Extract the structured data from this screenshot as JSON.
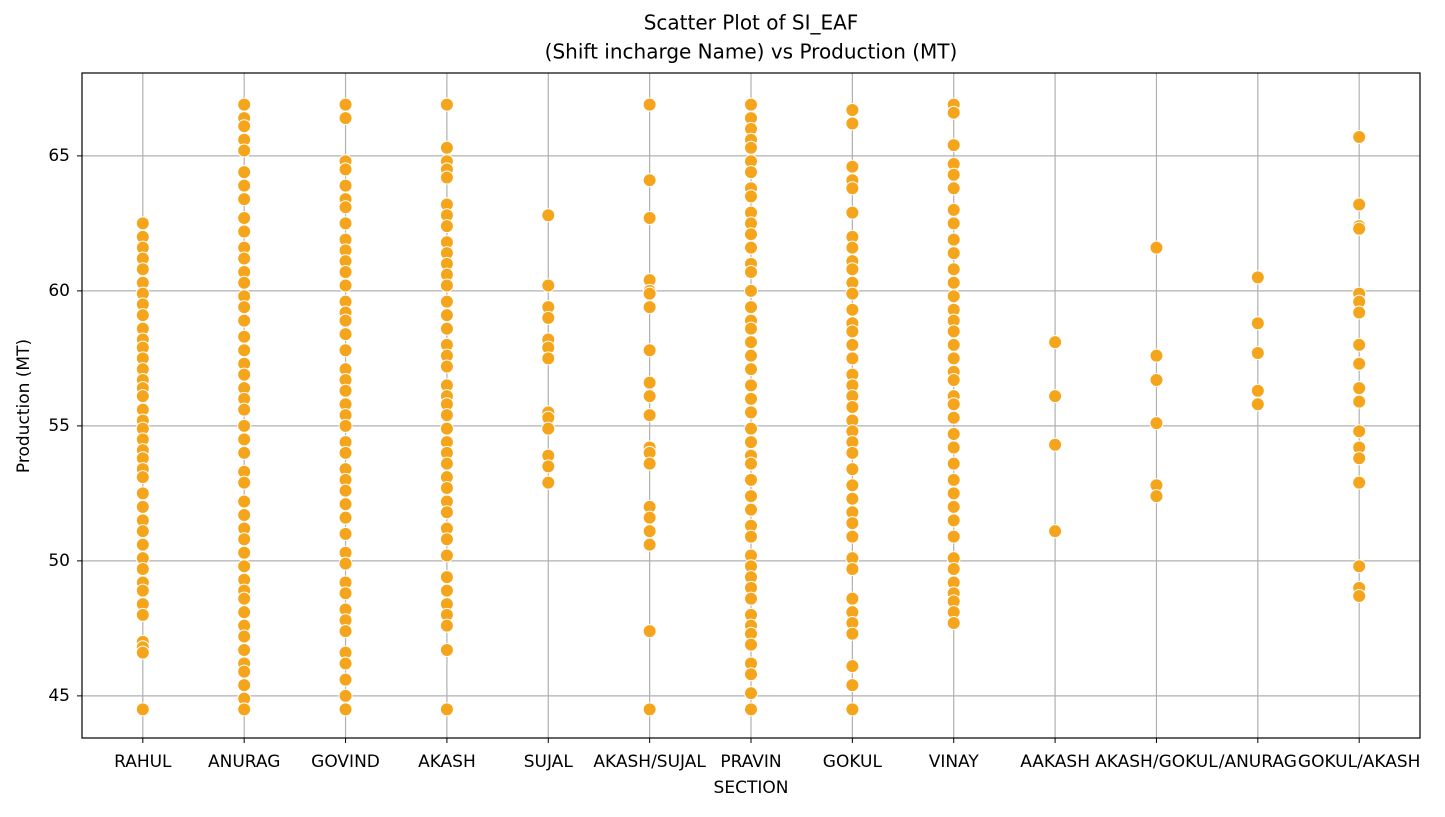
{
  "chart_data": {
    "type": "scatter",
    "title": "Scatter Plot of SI_EAF",
    "subtitle": "(Shift incharge Name) vs Production (MT)",
    "x_label": "SECTION",
    "y_label": "Production (MT)",
    "categories": [
      "RAHUL",
      "ANURAG",
      "GOVIND",
      "AKASH",
      "SUJAL",
      "AKASH/SUJAL",
      "PRAVIN",
      "GOKUL",
      "VINAY",
      "AAKASH",
      "AKASH/GOKUL",
      "/ANURAG",
      "GOKUL/AKASH"
    ],
    "color": "#f4a51c",
    "values": [
      [
        62.5,
        62.0,
        61.6,
        61.2,
        60.8,
        60.3,
        59.9,
        59.5,
        59.1,
        58.6,
        58.2,
        57.9,
        57.5,
        57.1,
        56.7,
        56.4,
        56.1,
        55.6,
        55.2,
        54.9,
        54.5,
        54.1,
        53.8,
        53.4,
        53.1,
        52.5,
        52.0,
        51.5,
        51.1,
        50.6,
        50.1,
        49.7,
        49.2,
        48.9,
        48.4,
        48.0,
        47.0,
        46.8,
        46.6,
        44.5
      ],
      [
        66.9,
        66.4,
        66.1,
        65.6,
        65.2,
        64.4,
        63.9,
        63.4,
        62.7,
        62.2,
        61.6,
        61.2,
        60.7,
        60.3,
        59.8,
        59.4,
        58.9,
        58.3,
        57.8,
        57.3,
        56.9,
        56.4,
        56.0,
        55.6,
        55.0,
        54.5,
        54.0,
        53.3,
        52.9,
        52.2,
        51.7,
        51.2,
        50.8,
        50.3,
        49.8,
        49.3,
        48.9,
        48.6,
        48.1,
        47.6,
        47.2,
        46.7,
        46.2,
        45.9,
        45.4,
        44.9,
        44.5
      ],
      [
        66.9,
        66.4,
        64.8,
        64.5,
        63.9,
        63.4,
        63.1,
        62.5,
        61.9,
        61.5,
        61.1,
        60.7,
        60.2,
        59.6,
        59.2,
        58.9,
        58.4,
        57.8,
        57.1,
        56.7,
        56.3,
        55.8,
        55.4,
        55.0,
        54.4,
        54.0,
        53.4,
        53.0,
        52.6,
        52.1,
        51.6,
        51.0,
        50.3,
        49.9,
        49.2,
        48.8,
        48.2,
        47.8,
        47.4,
        46.6,
        46.2,
        45.6,
        45.0,
        44.5
      ],
      [
        66.9,
        65.3,
        64.8,
        64.5,
        64.2,
        63.2,
        62.8,
        62.4,
        61.8,
        61.4,
        61.0,
        60.6,
        60.2,
        59.6,
        59.1,
        58.6,
        58.0,
        57.6,
        57.2,
        56.5,
        56.1,
        55.8,
        55.4,
        54.9,
        54.4,
        54.0,
        53.6,
        53.1,
        52.7,
        52.2,
        51.8,
        51.2,
        50.8,
        50.2,
        49.4,
        48.9,
        48.4,
        48.0,
        47.6,
        46.7,
        44.5
      ],
      [
        62.8,
        60.2,
        59.4,
        59.0,
        58.2,
        57.9,
        57.5,
        55.5,
        55.3,
        54.9,
        53.9,
        53.5,
        52.9
      ],
      [
        66.9,
        64.1,
        62.7,
        60.4,
        60.0,
        59.9,
        59.4,
        57.8,
        56.6,
        56.1,
        55.4,
        54.2,
        54.0,
        53.6,
        52.0,
        51.6,
        51.1,
        50.6,
        47.4,
        44.5
      ],
      [
        66.9,
        66.4,
        66.0,
        65.6,
        65.3,
        64.8,
        64.4,
        63.8,
        63.5,
        62.9,
        62.5,
        62.1,
        61.6,
        61.0,
        60.7,
        60.0,
        59.4,
        58.9,
        58.6,
        58.1,
        57.6,
        57.1,
        56.5,
        56.0,
        55.5,
        54.9,
        54.4,
        53.9,
        53.6,
        53.0,
        52.4,
        51.9,
        51.3,
        50.9,
        50.2,
        49.8,
        49.4,
        49.0,
        48.6,
        48.0,
        47.6,
        47.3,
        46.9,
        46.2,
        45.8,
        45.1,
        44.5
      ],
      [
        66.7,
        66.2,
        64.6,
        64.1,
        63.8,
        62.9,
        62.0,
        61.6,
        61.1,
        60.8,
        60.3,
        59.9,
        59.3,
        58.8,
        58.5,
        58.0,
        57.5,
        56.9,
        56.5,
        56.1,
        55.7,
        55.2,
        54.8,
        54.4,
        54.0,
        53.4,
        52.8,
        52.3,
        51.8,
        51.4,
        50.9,
        50.1,
        49.7,
        48.6,
        48.1,
        47.7,
        47.3,
        46.1,
        45.4,
        44.5
      ],
      [
        66.9,
        66.6,
        65.4,
        64.7,
        64.3,
        63.8,
        63.0,
        62.5,
        61.9,
        61.4,
        60.8,
        60.3,
        59.8,
        59.3,
        58.9,
        58.5,
        58.0,
        57.5,
        57.0,
        56.7,
        56.1,
        55.8,
        55.3,
        54.7,
        54.2,
        53.6,
        53.0,
        52.5,
        52.0,
        51.5,
        50.9,
        50.1,
        49.7,
        49.2,
        48.8,
        48.5,
        48.1,
        47.7
      ],
      [
        58.1,
        56.1,
        54.3,
        51.1
      ],
      [
        61.6,
        57.6,
        56.7,
        55.1,
        52.8,
        52.4
      ],
      [
        60.5,
        58.8,
        57.7,
        56.3,
        55.8
      ],
      [
        65.7,
        63.2,
        62.4,
        62.3,
        59.9,
        59.6,
        59.2,
        58.0,
        57.3,
        56.4,
        55.9,
        54.8,
        54.2,
        53.8,
        52.9,
        49.8,
        49.0,
        48.7
      ]
    ],
    "ylim": [
      43.44,
      68.07
    ],
    "yticks": [
      45,
      50,
      55,
      60,
      65
    ],
    "grid": true
  }
}
